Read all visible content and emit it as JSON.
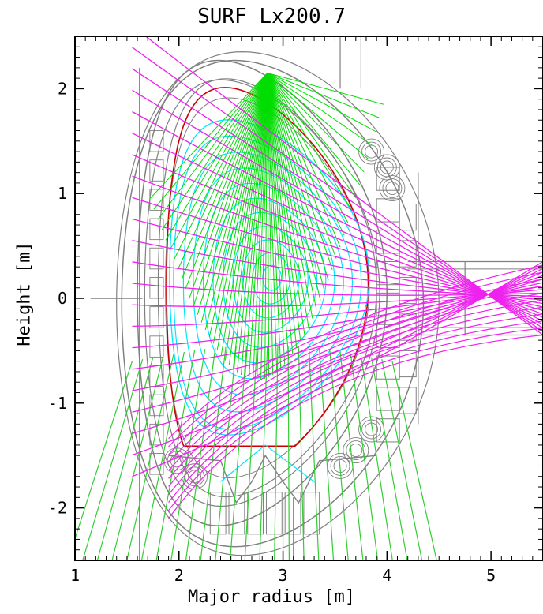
{
  "chart_data": {
    "type": "line",
    "title": "SURF Lx200.7",
    "xlabel": "Major radius [m]",
    "ylabel": "Height [m]",
    "xlim": [
      1.0,
      5.5
    ],
    "ylim": [
      -2.5,
      2.5
    ],
    "x_ticks": [
      "1",
      "2",
      "3",
      "4",
      "5"
    ],
    "y_ticks": [
      "-2",
      "-1",
      "0",
      "1",
      "2"
    ],
    "grid": false,
    "legend": "none",
    "plasma": {
      "axis": [
        2.85,
        0.2
      ],
      "elongation": 1.55,
      "triangularity": 0.4,
      "minor_radius": 0.95,
      "x_point_lower": [
        2.83,
        -1.4
      ]
    },
    "sources": {
      "upper_fan_origin": [
        2.85,
        2.15
      ],
      "upper_fan_targets_x": [
        1.85,
        2.05,
        2.25,
        2.45,
        2.65,
        2.85,
        3.05,
        3.25,
        3.45,
        3.65,
        3.85
      ],
      "upper_fan_targets_y": [
        0.9,
        0.55,
        0.2,
        -0.2,
        -0.5,
        -0.7,
        -0.55,
        -0.2,
        0.3,
        0.8,
        1.4
      ],
      "lower_fan_x_bottom_start": 0.9,
      "lower_fan_x_bottom_end": 4.5,
      "lower_fan_count": 26,
      "magenta_fan_origin": [
        5.5,
        0.0
      ],
      "magenta_fan_count": 22
    },
    "colors": {
      "flux_surface": "#00e5ff",
      "separatrix": "#ff00ff",
      "lower_green": "#33cc33",
      "upper_green": "#00dd00",
      "magenta_chords": "#ee22ee",
      "wall": "#808080",
      "limiter": "#cc0000"
    }
  }
}
